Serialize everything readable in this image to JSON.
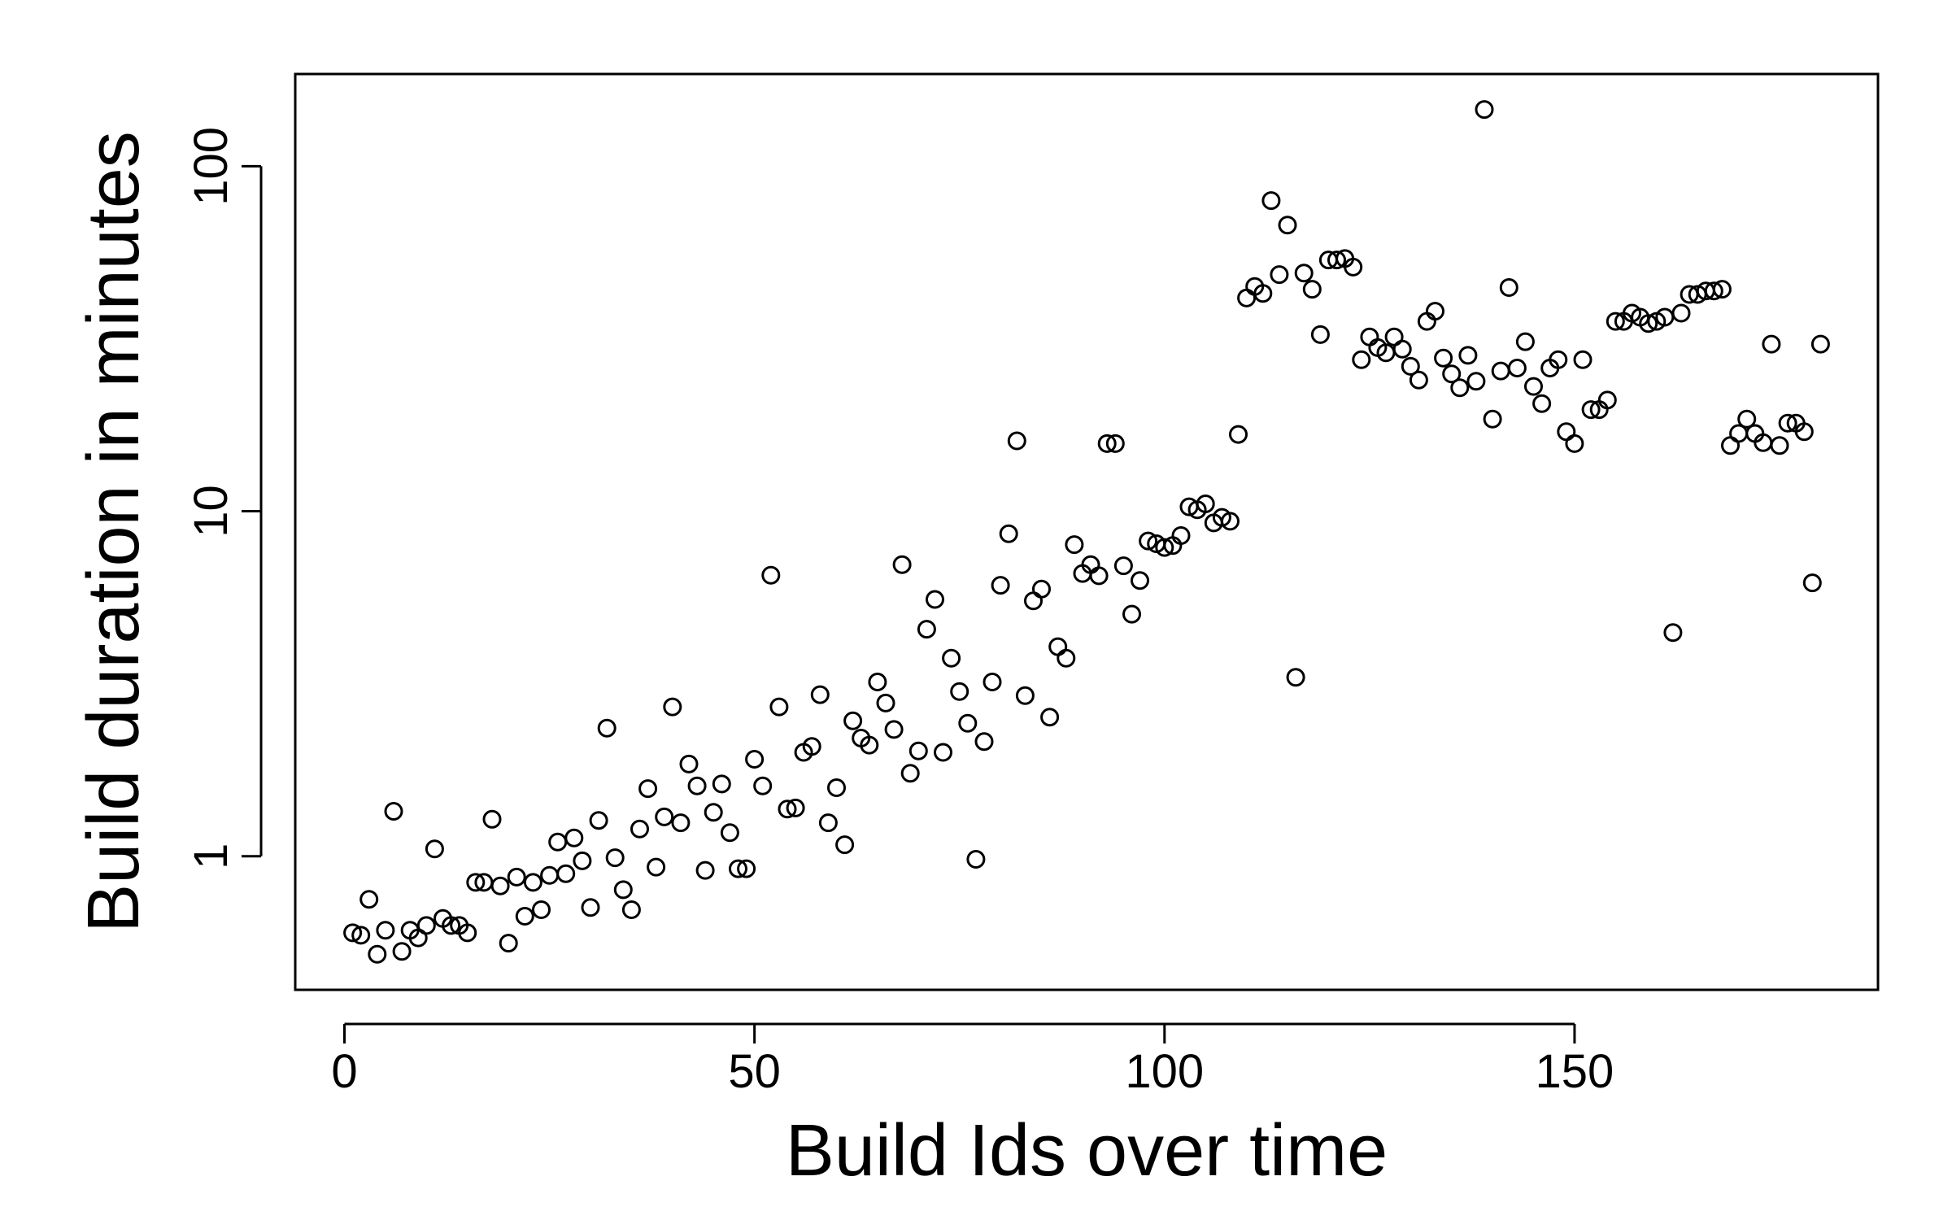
{
  "chart_data": {
    "type": "scatter",
    "xlabel": "Build Ids over time",
    "ylabel": "Build duration in minutes",
    "yscale": "log",
    "xlim": [
      -6,
      187
    ],
    "ylim": [
      0.41,
      185
    ],
    "x_ticks": [
      0,
      50,
      100,
      150
    ],
    "x_tick_labels": [
      "0",
      "50",
      "100",
      "150"
    ],
    "y_ticks": [
      1,
      10,
      100
    ],
    "y_tick_labels": [
      "1",
      "10",
      "100"
    ],
    "grid": false,
    "legend": "none",
    "marker": "open-circle",
    "x": [
      1,
      2,
      3,
      4,
      5,
      6,
      7,
      8,
      9,
      10,
      11,
      12,
      13,
      14,
      15,
      16,
      17,
      18,
      19,
      20,
      21,
      22,
      23,
      24,
      25,
      26,
      27,
      28,
      29,
      30,
      31,
      32,
      33,
      34,
      35,
      36,
      37,
      38,
      39,
      40,
      41,
      42,
      43,
      44,
      45,
      46,
      47,
      48,
      49,
      50,
      51,
      52,
      53,
      54,
      55,
      56,
      57,
      58,
      59,
      60,
      61,
      62,
      63,
      64,
      65,
      66,
      67,
      68,
      69,
      70,
      71,
      72,
      73,
      74,
      75,
      76,
      77,
      78,
      79,
      80,
      81,
      82,
      83,
      84,
      85,
      86,
      87,
      88,
      89,
      90,
      91,
      92,
      93,
      94,
      95,
      96,
      97,
      98,
      99,
      100,
      101,
      102,
      103,
      104,
      105,
      106,
      107,
      108,
      109,
      110,
      111,
      112,
      113,
      114,
      115,
      116,
      117,
      118,
      119,
      120,
      121,
      122,
      123,
      124,
      125,
      126,
      127,
      128,
      129,
      130,
      131,
      132,
      133,
      134,
      135,
      136,
      137,
      138,
      139,
      140,
      141,
      142,
      143,
      144,
      145,
      146,
      147,
      148,
      149,
      150,
      151,
      152,
      153,
      154,
      155,
      156,
      157,
      158,
      159,
      160,
      161,
      162,
      163,
      164,
      165,
      166,
      167,
      168,
      169,
      170,
      171,
      172,
      173,
      174,
      175,
      176,
      177,
      178,
      179,
      180
    ],
    "y": [
      0.6,
      0.59,
      0.75,
      0.52,
      0.61,
      1.35,
      0.53,
      0.61,
      0.58,
      0.63,
      1.05,
      0.66,
      0.63,
      0.63,
      0.6,
      0.84,
      0.84,
      1.28,
      0.82,
      0.56,
      0.87,
      0.67,
      0.84,
      0.7,
      0.88,
      1.1,
      0.89,
      1.13,
      0.97,
      0.71,
      1.27,
      2.35,
      0.99,
      0.8,
      0.7,
      1.2,
      1.57,
      0.93,
      1.3,
      2.71,
      1.25,
      1.85,
      1.6,
      0.91,
      1.34,
      1.62,
      1.17,
      0.92,
      0.92,
      1.91,
      1.6,
      6.52,
      2.71,
      1.37,
      1.38,
      2.0,
      2.08,
      2.94,
      1.25,
      1.58,
      1.08,
      2.47,
      2.2,
      2.1,
      3.2,
      2.78,
      2.33,
      7.0,
      1.74,
      2.02,
      4.55,
      5.55,
      2.0,
      3.75,
      3.0,
      2.43,
      0.98,
      2.15,
      3.2,
      6.1,
      8.6,
      16.0,
      2.92,
      5.5,
      5.95,
      2.53,
      4.05,
      3.75,
      8.0,
      6.6,
      7.0,
      6.5,
      15.7,
      15.7,
      6.95,
      5.03,
      6.3,
      8.2,
      8.05,
      7.85,
      7.95,
      8.5,
      10.3,
      10.1,
      10.5,
      9.25,
      9.6,
      9.35,
      16.7,
      41.5,
      44.8,
      42.8,
      79.5,
      48.5,
      67.5,
      3.3,
      49.0,
      44.0,
      32.5,
      53.5,
      53.5,
      54.0,
      51.0,
      27.5,
      32.0,
      29.8,
      28.8,
      32.0,
      29.5,
      26.3,
      24.0,
      35.5,
      38.0,
      27.8,
      25.0,
      22.8,
      28.3,
      23.8,
      146.0,
      18.5,
      25.5,
      44.5,
      26.0,
      31.0,
      23.0,
      20.5,
      26.0,
      27.5,
      17.0,
      15.7,
      27.5,
      19.7,
      19.7,
      21.0,
      35.5,
      35.5,
      37.5,
      36.5,
      35.0,
      35.5,
      36.5,
      4.45,
      37.5,
      42.5,
      42.5,
      43.5,
      43.5,
      44.0,
      15.5,
      16.8,
      18.5,
      16.8,
      15.8,
      30.5,
      15.5,
      18.0,
      18.0,
      17.0,
      6.2,
      30.5
    ]
  }
}
